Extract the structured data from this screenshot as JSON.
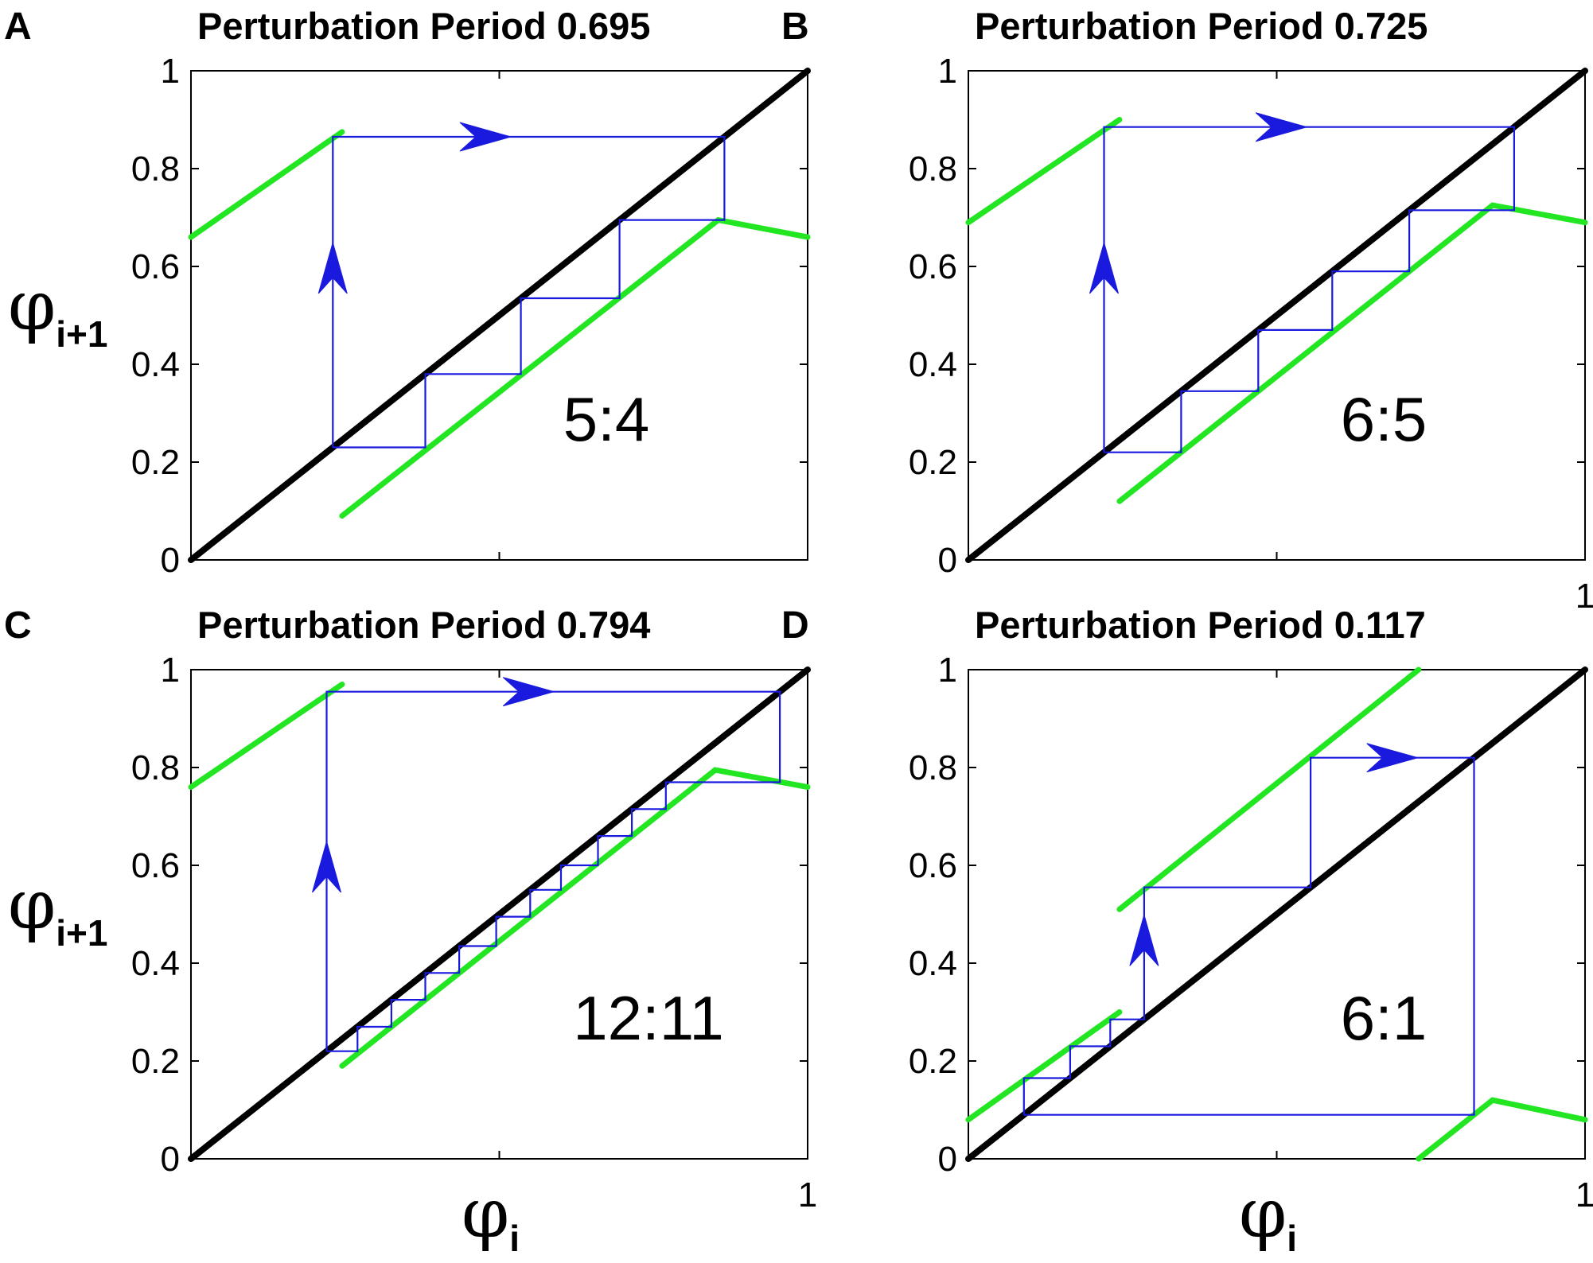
{
  "figure": {
    "y_axis_label": {
      "symbol": "φ",
      "subscript": "i+1"
    },
    "x_axis_label": {
      "symbol": "φ",
      "subscript": "i"
    },
    "colors": {
      "identity": "#000000",
      "map": "#22e622",
      "cobweb": "#1a1adf"
    }
  },
  "chart_data": [
    {
      "panel": "A",
      "type": "line",
      "title": "Perturbation Period 0.695",
      "xlim": [
        0,
        1
      ],
      "ylim": [
        0,
        1
      ],
      "xtick_labels": [],
      "ytick_labels": [
        "0",
        "0.2",
        "0.4",
        "0.6",
        "0.8",
        "1"
      ],
      "ratio_label": "5:4",
      "series": [
        {
          "name": "identity",
          "points": [
            [
              0,
              0
            ],
            [
              1,
              1
            ]
          ]
        },
        {
          "name": "map-1",
          "points": [
            [
              0,
              0.66
            ],
            [
              0.245,
              0.875
            ]
          ]
        },
        {
          "name": "map-2",
          "points": [
            [
              0.245,
              0.09
            ],
            [
              0.855,
              0.695
            ],
            [
              1,
              0.66
            ]
          ]
        },
        {
          "name": "cobweb",
          "points": [
            [
              0.23,
              0.23
            ],
            [
              0.23,
              0.865
            ],
            [
              0.865,
              0.865
            ],
            [
              0.865,
              0.695
            ],
            [
              0.695,
              0.695
            ],
            [
              0.695,
              0.535
            ],
            [
              0.535,
              0.535
            ],
            [
              0.535,
              0.38
            ],
            [
              0.38,
              0.38
            ],
            [
              0.38,
              0.23
            ],
            [
              0.23,
              0.23
            ]
          ]
        }
      ],
      "arrows": [
        {
          "at": [
            0.23,
            0.6
          ],
          "dir": "up"
        },
        {
          "at": [
            0.48,
            0.865
          ],
          "dir": "right"
        }
      ]
    },
    {
      "panel": "B",
      "type": "line",
      "title": "Perturbation Period 0.725",
      "xlim": [
        0,
        1
      ],
      "ylim": [
        0,
        1
      ],
      "xtick_labels": [
        "1"
      ],
      "ytick_labels": [
        "0",
        "0.2",
        "0.4",
        "0.6",
        "0.8",
        "1"
      ],
      "ratio_label": "6:5",
      "series": [
        {
          "name": "identity",
          "points": [
            [
              0,
              0
            ],
            [
              1,
              1
            ]
          ]
        },
        {
          "name": "map-1",
          "points": [
            [
              0,
              0.69
            ],
            [
              0.245,
              0.9
            ]
          ]
        },
        {
          "name": "map-2",
          "points": [
            [
              0.245,
              0.12
            ],
            [
              0.85,
              0.725
            ],
            [
              1,
              0.69
            ]
          ]
        },
        {
          "name": "cobweb",
          "points": [
            [
              0.22,
              0.22
            ],
            [
              0.22,
              0.885
            ],
            [
              0.885,
              0.885
            ],
            [
              0.885,
              0.715
            ],
            [
              0.715,
              0.715
            ],
            [
              0.715,
              0.59
            ],
            [
              0.59,
              0.59
            ],
            [
              0.59,
              0.47
            ],
            [
              0.47,
              0.47
            ],
            [
              0.47,
              0.345
            ],
            [
              0.345,
              0.345
            ],
            [
              0.345,
              0.22
            ],
            [
              0.22,
              0.22
            ]
          ]
        }
      ],
      "arrows": [
        {
          "at": [
            0.22,
            0.6
          ],
          "dir": "up"
        },
        {
          "at": [
            0.51,
            0.885
          ],
          "dir": "right"
        }
      ]
    },
    {
      "panel": "C",
      "type": "line",
      "title": "Perturbation Period 0.794",
      "xlim": [
        0,
        1
      ],
      "ylim": [
        0,
        1
      ],
      "xtick_labels": [
        "1"
      ],
      "ytick_labels": [
        "0",
        "0.2",
        "0.4",
        "0.6",
        "0.8",
        "1"
      ],
      "ratio_label": "12:11",
      "series": [
        {
          "name": "identity",
          "points": [
            [
              0,
              0
            ],
            [
              1,
              1
            ]
          ]
        },
        {
          "name": "map-1",
          "points": [
            [
              0,
              0.76
            ],
            [
              0.245,
              0.97
            ]
          ]
        },
        {
          "name": "map-2",
          "points": [
            [
              0.245,
              0.19
            ],
            [
              0.85,
              0.795
            ],
            [
              1,
              0.76
            ]
          ]
        },
        {
          "name": "cobweb",
          "points": [
            [
              0.22,
              0.22
            ],
            [
              0.22,
              0.955
            ],
            [
              0.955,
              0.955
            ],
            [
              0.955,
              0.77
            ],
            [
              0.77,
              0.77
            ],
            [
              0.77,
              0.715
            ],
            [
              0.715,
              0.715
            ],
            [
              0.715,
              0.66
            ],
            [
              0.66,
              0.66
            ],
            [
              0.66,
              0.6
            ],
            [
              0.6,
              0.6
            ],
            [
              0.6,
              0.55
            ],
            [
              0.55,
              0.55
            ],
            [
              0.55,
              0.495
            ],
            [
              0.495,
              0.495
            ],
            [
              0.495,
              0.435
            ],
            [
              0.435,
              0.435
            ],
            [
              0.435,
              0.38
            ],
            [
              0.38,
              0.38
            ],
            [
              0.38,
              0.325
            ],
            [
              0.325,
              0.325
            ],
            [
              0.325,
              0.27
            ],
            [
              0.27,
              0.27
            ],
            [
              0.27,
              0.22
            ],
            [
              0.22,
              0.22
            ]
          ]
        }
      ],
      "arrows": [
        {
          "at": [
            0.22,
            0.6
          ],
          "dir": "up"
        },
        {
          "at": [
            0.55,
            0.955
          ],
          "dir": "right"
        }
      ]
    },
    {
      "panel": "D",
      "type": "line",
      "title": "Perturbation Period 0.117",
      "xlim": [
        0,
        1
      ],
      "ylim": [
        0,
        1
      ],
      "xtick_labels": [
        "1"
      ],
      "ytick_labels": [
        "0",
        "0.2",
        "0.4",
        "0.6",
        "0.8",
        "1"
      ],
      "ratio_label": "6:1",
      "series": [
        {
          "name": "identity",
          "points": [
            [
              0,
              0
            ],
            [
              1,
              1
            ]
          ]
        },
        {
          "name": "map-1",
          "points": [
            [
              0,
              0.08
            ],
            [
              0.245,
              0.3
            ]
          ]
        },
        {
          "name": "map-2",
          "points": [
            [
              0.245,
              0.51
            ],
            [
              0.73,
              1.0
            ]
          ]
        },
        {
          "name": "map-3",
          "points": [
            [
              0.73,
              0.0
            ],
            [
              0.85,
              0.12
            ],
            [
              1,
              0.08
            ]
          ]
        },
        {
          "name": "cobweb",
          "points": [
            [
              0.09,
              0.09
            ],
            [
              0.09,
              0.165
            ],
            [
              0.165,
              0.165
            ],
            [
              0.165,
              0.23
            ],
            [
              0.23,
              0.23
            ],
            [
              0.23,
              0.285
            ],
            [
              0.285,
              0.285
            ],
            [
              0.285,
              0.555
            ],
            [
              0.555,
              0.555
            ],
            [
              0.555,
              0.82
            ],
            [
              0.82,
              0.82
            ],
            [
              0.82,
              0.09
            ],
            [
              0.09,
              0.09
            ]
          ]
        }
      ],
      "arrows": [
        {
          "at": [
            0.285,
            0.45
          ],
          "dir": "up"
        },
        {
          "at": [
            0.69,
            0.82
          ],
          "dir": "right"
        }
      ]
    }
  ]
}
